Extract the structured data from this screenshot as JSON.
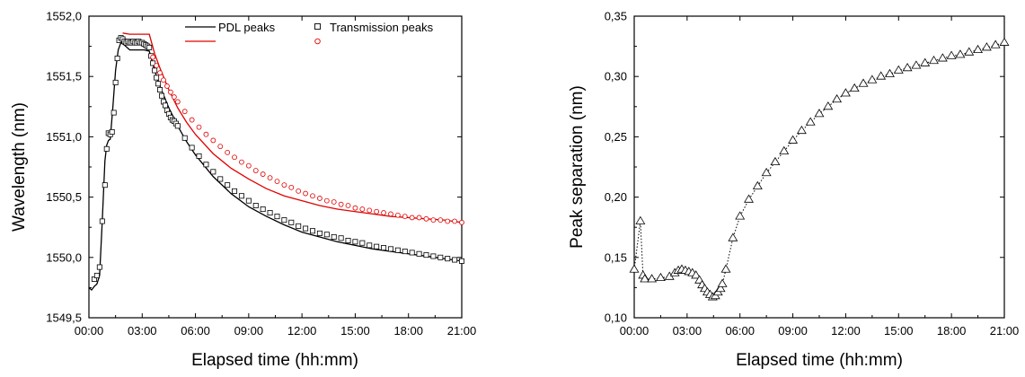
{
  "chart_data": [
    {
      "type": "line",
      "xlabel": "Elapsed time (hh:mm)",
      "ylabel": "Wavelength (nm)",
      "xlim": [
        0,
        21
      ],
      "ylim": [
        1549.5,
        1552.0
      ],
      "x_ticks": [
        0,
        3,
        6,
        9,
        12,
        15,
        18,
        21
      ],
      "x_tick_labels": [
        "00:00",
        "03:00",
        "06:00",
        "09:00",
        "12:00",
        "15:00",
        "18:00",
        "21:00"
      ],
      "y_ticks": [
        1549.5,
        1550.0,
        1550.5,
        1551.0,
        1551.5,
        1552.0
      ],
      "y_tick_labels": [
        "1549,5",
        "1550,0",
        "1550,5",
        "1551,0",
        "1551,5",
        "1552,0"
      ],
      "legend_position": "top",
      "legend_columns": [
        {
          "label": "PDL peaks",
          "items": [
            {
              "series": "PDL peaks (black)",
              "marker": "line",
              "color": "#000000"
            },
            {
              "series": "PDL peaks (red)",
              "marker": "line",
              "color": "#e00000"
            }
          ]
        },
        {
          "label": "Transmission peaks",
          "items": [
            {
              "series": "Transmission peaks (black)",
              "marker": "square",
              "color": "#000000"
            },
            {
              "series": "Transmission peaks (red)",
              "marker": "circle",
              "color": "#e00000"
            }
          ]
        }
      ],
      "series": [
        {
          "key": "pdl_black",
          "style": "line",
          "color": "#000000",
          "x": [
            0.0,
            0.15,
            0.3,
            0.45,
            0.6,
            0.75,
            0.9,
            1.0,
            1.1,
            1.2,
            1.35,
            1.5,
            1.65,
            1.8,
            2.0,
            2.3,
            2.7,
            3.1,
            3.4,
            3.7,
            4.0,
            4.5,
            5.0,
            5.5,
            6.0,
            7.0,
            8.0,
            9.0,
            10.0,
            11.0,
            12.0,
            13.0,
            14.0,
            15.0,
            16.0,
            17.0,
            18.0,
            19.0,
            20.0,
            21.0
          ],
          "y": [
            1549.75,
            1549.73,
            1549.76,
            1549.78,
            1549.85,
            1550.3,
            1550.8,
            1550.93,
            1550.97,
            1550.98,
            1551.25,
            1551.55,
            1551.72,
            1551.78,
            1551.76,
            1551.72,
            1551.72,
            1551.72,
            1551.71,
            1551.55,
            1551.42,
            1551.24,
            1551.09,
            1550.96,
            1550.85,
            1550.67,
            1550.53,
            1550.42,
            1550.34,
            1550.27,
            1550.21,
            1550.17,
            1550.13,
            1550.1,
            1550.07,
            1550.05,
            1550.03,
            1550.01,
            1549.99,
            1549.97
          ]
        },
        {
          "key": "pdl_red",
          "style": "line",
          "color": "#e00000",
          "x": [
            1.9,
            2.3,
            2.7,
            3.1,
            3.4,
            3.7,
            4.0,
            4.5,
            5.0,
            5.5,
            6.0,
            7.0,
            8.0,
            9.0,
            10.0,
            11.0,
            12.0,
            13.0,
            14.0,
            15.0,
            16.0,
            17.0,
            18.0,
            19.0,
            20.0,
            21.0
          ],
          "y": [
            1551.86,
            1551.85,
            1551.85,
            1551.85,
            1551.85,
            1551.69,
            1551.57,
            1551.39,
            1551.24,
            1551.12,
            1551.02,
            1550.86,
            1550.74,
            1550.65,
            1550.57,
            1550.51,
            1550.47,
            1550.43,
            1550.4,
            1550.38,
            1550.36,
            1550.34,
            1550.33,
            1550.32,
            1550.31,
            1550.29
          ]
        },
        {
          "key": "trans_black",
          "style": "squares",
          "color": "#000000",
          "x": [
            0.3,
            0.45,
            0.6,
            0.75,
            0.9,
            1.0,
            1.1,
            1.2,
            1.3,
            1.4,
            1.5,
            1.6,
            1.7,
            1.8,
            1.9,
            2.0,
            2.1,
            2.2,
            2.3,
            2.4,
            2.5,
            2.6,
            2.7,
            2.8,
            2.9,
            3.0,
            3.1,
            3.2,
            3.3,
            3.4,
            3.5,
            3.6,
            3.7,
            3.8,
            3.9,
            4.0,
            4.1,
            4.2,
            4.3,
            4.4,
            4.5,
            4.6,
            4.7,
            4.8,
            4.9,
            5.0,
            5.4,
            5.8,
            6.2,
            6.6,
            7.0,
            7.4,
            7.8,
            8.2,
            8.6,
            9.0,
            9.4,
            9.8,
            10.2,
            10.6,
            11.0,
            11.4,
            11.8,
            12.2,
            12.6,
            13.0,
            13.4,
            13.8,
            14.2,
            14.6,
            15.0,
            15.4,
            15.8,
            16.2,
            16.6,
            17.0,
            17.4,
            17.8,
            18.2,
            18.6,
            19.0,
            19.4,
            19.8,
            20.2,
            20.6,
            21.0
          ],
          "y": [
            1549.82,
            1549.85,
            1549.92,
            1550.3,
            1550.6,
            1550.9,
            1551.03,
            1551.02,
            1551.04,
            1551.2,
            1551.45,
            1551.65,
            1551.8,
            1551.82,
            1551.81,
            1551.79,
            1551.78,
            1551.79,
            1551.78,
            1551.78,
            1551.79,
            1551.78,
            1551.78,
            1551.79,
            1551.78,
            1551.78,
            1551.77,
            1551.76,
            1551.75,
            1551.74,
            1551.67,
            1551.61,
            1551.55,
            1551.49,
            1551.44,
            1551.39,
            1551.34,
            1551.29,
            1551.26,
            1551.22,
            1551.19,
            1551.16,
            1551.14,
            1551.13,
            1551.11,
            1551.09,
            1550.99,
            1550.91,
            1550.84,
            1550.77,
            1550.71,
            1550.65,
            1550.6,
            1550.55,
            1550.51,
            1550.47,
            1550.43,
            1550.4,
            1550.37,
            1550.34,
            1550.31,
            1550.29,
            1550.26,
            1550.24,
            1550.22,
            1550.2,
            1550.19,
            1550.17,
            1550.16,
            1550.14,
            1550.13,
            1550.12,
            1550.1,
            1550.09,
            1550.08,
            1550.07,
            1550.06,
            1550.05,
            1550.04,
            1550.03,
            1550.02,
            1550.01,
            1550.0,
            1549.99,
            1549.98,
            1549.97
          ]
        },
        {
          "key": "trans_red",
          "style": "circles",
          "color": "#e00000",
          "x": [
            3.6,
            3.8,
            4.0,
            4.2,
            4.4,
            4.6,
            4.8,
            5.0,
            5.4,
            5.8,
            6.2,
            6.6,
            7.0,
            7.4,
            7.8,
            8.2,
            8.6,
            9.0,
            9.4,
            9.8,
            10.2,
            10.6,
            11.0,
            11.4,
            11.8,
            12.2,
            12.6,
            13.0,
            13.4,
            13.8,
            14.2,
            14.6,
            15.0,
            15.4,
            15.8,
            16.2,
            16.6,
            17.0,
            17.4,
            17.8,
            18.2,
            18.6,
            19.0,
            19.4,
            19.8,
            20.2,
            20.6,
            21.0
          ],
          "y": [
            1551.66,
            1551.59,
            1551.53,
            1551.47,
            1551.42,
            1551.37,
            1551.33,
            1551.29,
            1551.21,
            1551.14,
            1551.08,
            1551.02,
            1550.97,
            1550.92,
            1550.87,
            1550.83,
            1550.79,
            1550.76,
            1550.72,
            1550.69,
            1550.66,
            1550.63,
            1550.6,
            1550.58,
            1550.55,
            1550.53,
            1550.51,
            1550.49,
            1550.47,
            1550.46,
            1550.44,
            1550.43,
            1550.41,
            1550.4,
            1550.39,
            1550.38,
            1550.37,
            1550.36,
            1550.35,
            1550.34,
            1550.33,
            1550.33,
            1550.32,
            1550.31,
            1550.31,
            1550.3,
            1550.3,
            1550.29
          ]
        }
      ]
    },
    {
      "type": "scatter",
      "xlabel": "Elapsed time (hh:mm)",
      "ylabel": "Peak separation (nm)",
      "xlim": [
        0,
        21
      ],
      "ylim": [
        0.1,
        0.35
      ],
      "x_ticks": [
        0,
        3,
        6,
        9,
        12,
        15,
        18,
        21
      ],
      "x_tick_labels": [
        "00:00",
        "03:00",
        "06:00",
        "09:00",
        "12:00",
        "15:00",
        "18:00",
        "21:00"
      ],
      "y_ticks": [
        0.1,
        0.15,
        0.2,
        0.25,
        0.3,
        0.35
      ],
      "y_tick_labels": [
        "0,10",
        "0,15",
        "0,20",
        "0,25",
        "0,30",
        "0,35"
      ],
      "series": [
        {
          "key": "separation",
          "style": "triangles-dotted",
          "color": "#000000",
          "x": [
            0.0,
            0.35,
            0.5,
            0.6,
            1.0,
            1.5,
            2.0,
            2.3,
            2.5,
            2.7,
            2.9,
            3.1,
            3.3,
            3.5,
            3.7,
            3.85,
            4.0,
            4.15,
            4.3,
            4.45,
            4.6,
            4.75,
            4.9,
            5.0,
            5.2,
            5.6,
            6.0,
            6.5,
            7.0,
            7.5,
            8.0,
            8.5,
            9.0,
            9.5,
            10.0,
            10.5,
            11.0,
            11.5,
            12.0,
            12.5,
            13.0,
            13.5,
            14.0,
            14.5,
            15.0,
            15.5,
            16.0,
            16.5,
            17.0,
            17.5,
            18.0,
            18.5,
            19.0,
            19.5,
            20.0,
            20.5,
            21.0
          ],
          "y": [
            0.14,
            0.18,
            0.135,
            0.132,
            0.132,
            0.133,
            0.134,
            0.137,
            0.139,
            0.14,
            0.139,
            0.138,
            0.137,
            0.135,
            0.131,
            0.127,
            0.124,
            0.121,
            0.119,
            0.117,
            0.118,
            0.121,
            0.124,
            0.128,
            0.14,
            0.166,
            0.184,
            0.198,
            0.209,
            0.22,
            0.229,
            0.238,
            0.247,
            0.255,
            0.262,
            0.269,
            0.275,
            0.281,
            0.286,
            0.29,
            0.294,
            0.297,
            0.3,
            0.302,
            0.305,
            0.307,
            0.309,
            0.311,
            0.313,
            0.315,
            0.317,
            0.318,
            0.32,
            0.322,
            0.324,
            0.326,
            0.328
          ]
        }
      ]
    }
  ]
}
